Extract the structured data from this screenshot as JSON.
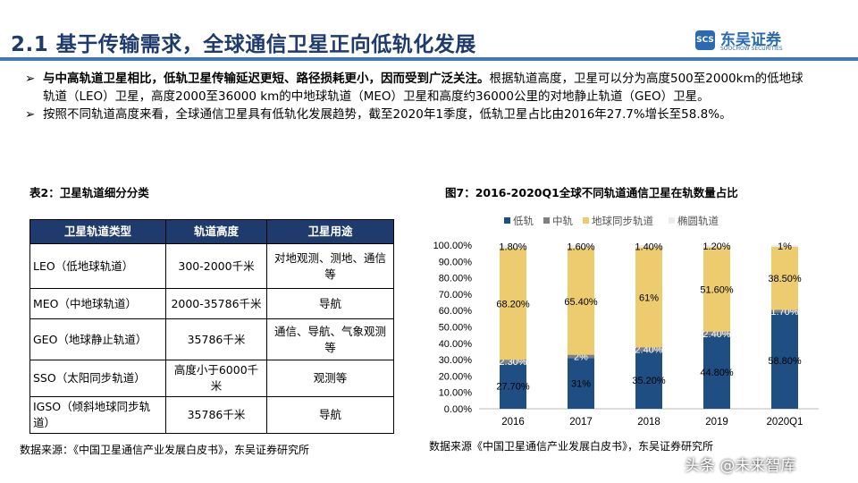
{
  "header": {
    "title": "2.1 基于传输需求，全球通信卫星正向低轨化发展",
    "logo_cn": "东吴证券",
    "logo_en": "SOOCHOW SECURITIES",
    "logo_mark": "SCS"
  },
  "bullets": [
    {
      "bold": "与中高轨道卫星相比，低轨卫星传输延迟更短、路径损耗更小，因而受到广泛关注。",
      "text": "根据轨道高度，卫星可以分为高度500至2000km的低地球轨道（LEO）卫星，高度2000至36000 km的中地球轨道（MEO）卫星和高度约36000公里的对地静止轨道（GEO）卫星。"
    },
    {
      "bold": "",
      "text": "按照不同轨道高度来看，全球通信卫星具有低轨化发展趋势，截至2020年1季度，低轨卫星占比由2016年27.7%增长至58.8%。"
    }
  ],
  "table": {
    "caption": "表2：卫星轨道细分分类",
    "headers": [
      "卫星轨道类型",
      "轨道高度",
      "卫星用途"
    ],
    "rows": [
      [
        "LEO（低地球轨道）",
        "300-2000千米",
        "对地观测、测地、通信等"
      ],
      [
        "MEO（中地球轨道）",
        "2000-35786千米",
        "导航"
      ],
      [
        "GEO（地球静止轨道）",
        "35786千米",
        "通信、导航、气象观测等"
      ],
      [
        "SSO（太阳同步轨道）",
        "高度小于6000千米",
        "观测等"
      ],
      [
        "IGSO（倾斜地球同步轨道）",
        "35786千米",
        "导航"
      ]
    ],
    "source": "数据来源：《中国卫星通信产业发展白皮书》，东吴证券研究所"
  },
  "chart_source": "数据来源《中国卫星通信产业发展白皮书》，东吴证券研究所",
  "watermark": "头条 @未来智库",
  "chart_data": {
    "type": "bar",
    "stacked": true,
    "title": "图7：2016-2020Q1全球不同轨道通信卫星在轨数量占比",
    "categories": [
      "2016",
      "2017",
      "2018",
      "2019",
      "2020Q1"
    ],
    "ylim": [
      0,
      100
    ],
    "yticks": [
      "0.00%",
      "10.00%",
      "20.00%",
      "30.00%",
      "40.00%",
      "50.00%",
      "60.00%",
      "70.00%",
      "80.00%",
      "90.00%",
      "100.00%"
    ],
    "legend_position": "top",
    "grid": false,
    "series": [
      {
        "name": "低轨",
        "color": "#1f4e82",
        "label_color": "#000",
        "values": [
          27.7,
          31,
          35.2,
          44.8,
          58.8
        ],
        "labels": [
          "27.70%",
          "31%",
          "35.20%",
          "44.80%",
          "58.80%"
        ]
      },
      {
        "name": "中轨",
        "color": "#808080",
        "label_color": "#fff",
        "values": [
          2.3,
          2,
          2.4,
          2.4,
          1.7
        ],
        "labels": [
          "2.30%",
          "2%",
          "2.40%",
          "2.40%",
          "1.70%"
        ]
      },
      {
        "name": "地球同步轨道",
        "color": "#eccc6f",
        "label_color": "#000",
        "values": [
          68.2,
          65.4,
          61,
          51.6,
          38.5
        ],
        "labels": [
          "68.20%",
          "65.40%",
          "61%",
          "51.60%",
          "38.50%"
        ]
      },
      {
        "name": "椭圆轨道",
        "color": "#e8eef0",
        "label_color": "#000",
        "values": [
          1.8,
          1.6,
          1.4,
          1.2,
          1
        ],
        "labels": [
          "1.80%",
          "1.60%",
          "1.40%",
          "1.20%",
          "1%"
        ]
      }
    ]
  }
}
